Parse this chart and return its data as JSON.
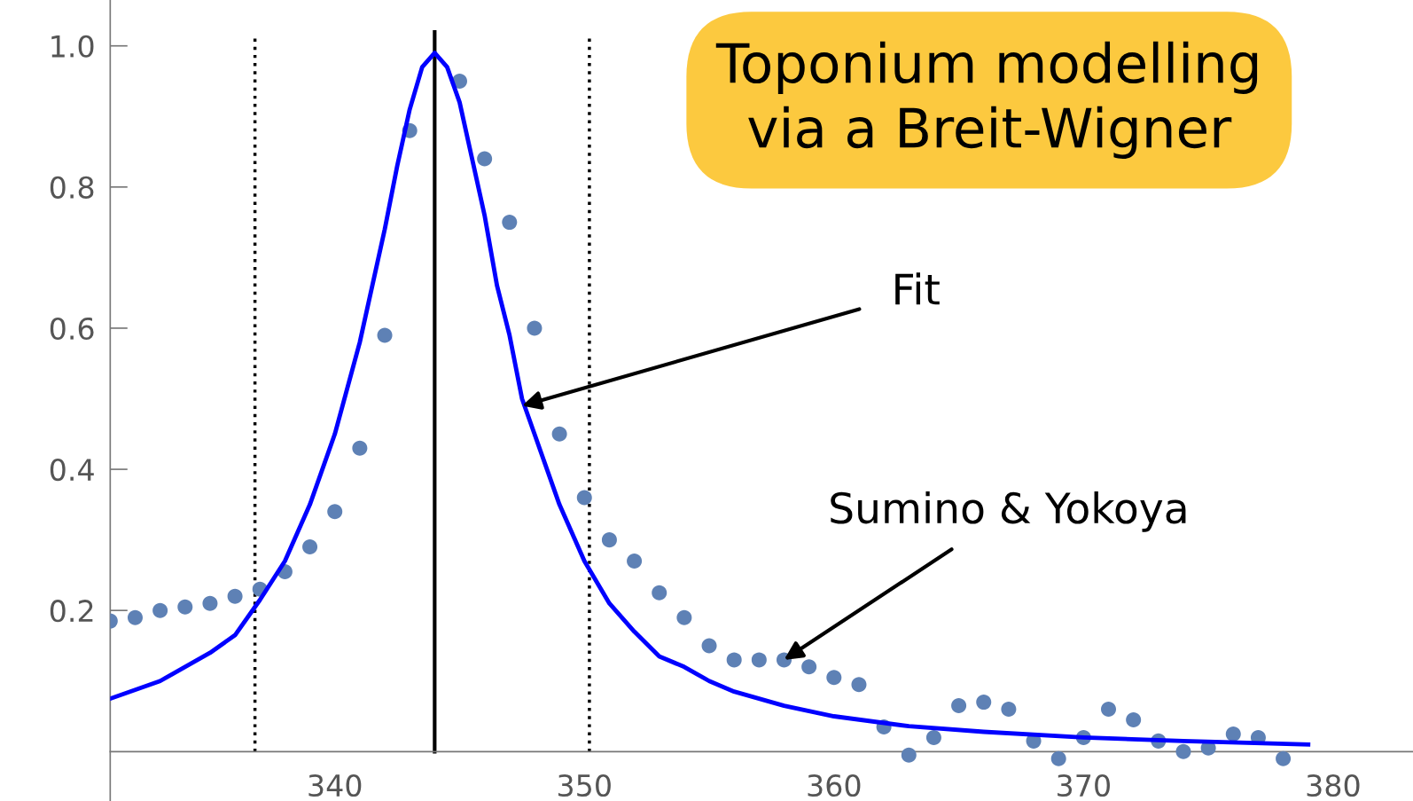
{
  "chart_data": {
    "type": "scatter",
    "title": "Toponium modelling\nvia a Breit-Wigner",
    "x": [
      331,
      332,
      333,
      334,
      335,
      336,
      337,
      338,
      339,
      340,
      341,
      342,
      343,
      344,
      345,
      346,
      347,
      348,
      349,
      350,
      351,
      352,
      353,
      354,
      355,
      356,
      357,
      358,
      359,
      360,
      361,
      362,
      363,
      364,
      365,
      366,
      367,
      368,
      369,
      370,
      371,
      372,
      373,
      374,
      375,
      376,
      377,
      378
    ],
    "series": [
      {
        "color": "#5e81b5",
        "marker": "circle",
        "values": [
          0.185,
          0.19,
          0.2,
          0.205,
          0.21,
          0.22,
          0.23,
          0.255,
          0.29,
          0.34,
          0.43,
          0.59,
          0.88,
          null,
          0.95,
          0.84,
          0.75,
          0.6,
          0.45,
          0.36,
          0.3,
          0.27,
          0.225,
          0.19,
          0.15,
          0.13,
          0.13,
          0.13,
          0.12,
          0.105,
          0.095,
          0.035,
          -0.005,
          0.02,
          0.065,
          0.07,
          0.06,
          0.015,
          -0.01,
          0.02,
          0.06,
          0.045,
          0.015,
          0.0,
          0.005,
          0.025,
          0.02,
          -0.01
        ]
      },
      {
        "type": "line",
        "color": "#0000ff",
        "line_style": "solid",
        "x": [
          331,
          333,
          335,
          336,
          337,
          338,
          339,
          340,
          341,
          342,
          342.5,
          343,
          343.5,
          344,
          344.5,
          345,
          345.5,
          346,
          346.5,
          347,
          347.5,
          348,
          349,
          350,
          351,
          352,
          353,
          354,
          355,
          356,
          358,
          360,
          363,
          366,
          370,
          374,
          379
        ],
        "values": [
          0.075,
          0.1,
          0.14,
          0.165,
          0.215,
          0.27,
          0.35,
          0.45,
          0.58,
          0.74,
          0.83,
          0.91,
          0.97,
          0.99,
          0.97,
          0.92,
          0.84,
          0.76,
          0.66,
          0.59,
          0.5,
          0.45,
          0.35,
          0.27,
          0.21,
          0.17,
          0.135,
          0.12,
          0.1,
          0.085,
          0.065,
          0.05,
          0.036,
          0.028,
          0.02,
          0.015,
          0.01
        ]
      }
    ],
    "ref_lines": [
      {
        "axis": "x",
        "value": 344,
        "color": "#000000",
        "line_style": "solid"
      },
      {
        "axis": "x",
        "value": 336.8,
        "color": "#000000",
        "line_style": "dotted"
      },
      {
        "axis": "x",
        "value": 350.2,
        "color": "#000000",
        "line_style": "dotted"
      }
    ],
    "annotations": [
      {
        "text": "Fit",
        "x": 347.5,
        "y": 0.49
      },
      {
        "text": "Sumino & Yokoya",
        "x": 358,
        "y": 0.13
      }
    ],
    "xlim": [
      331,
      383.2
    ],
    "ylim": [
      -0.07,
      1.065
    ],
    "xticks": [
      340,
      350,
      360,
      370,
      380
    ],
    "yticks": [
      0.2,
      0.4,
      0.6,
      0.8,
      {
        "value": 1.0,
        "label": "1.0"
      }
    ],
    "grid": false,
    "legend": false
  }
}
